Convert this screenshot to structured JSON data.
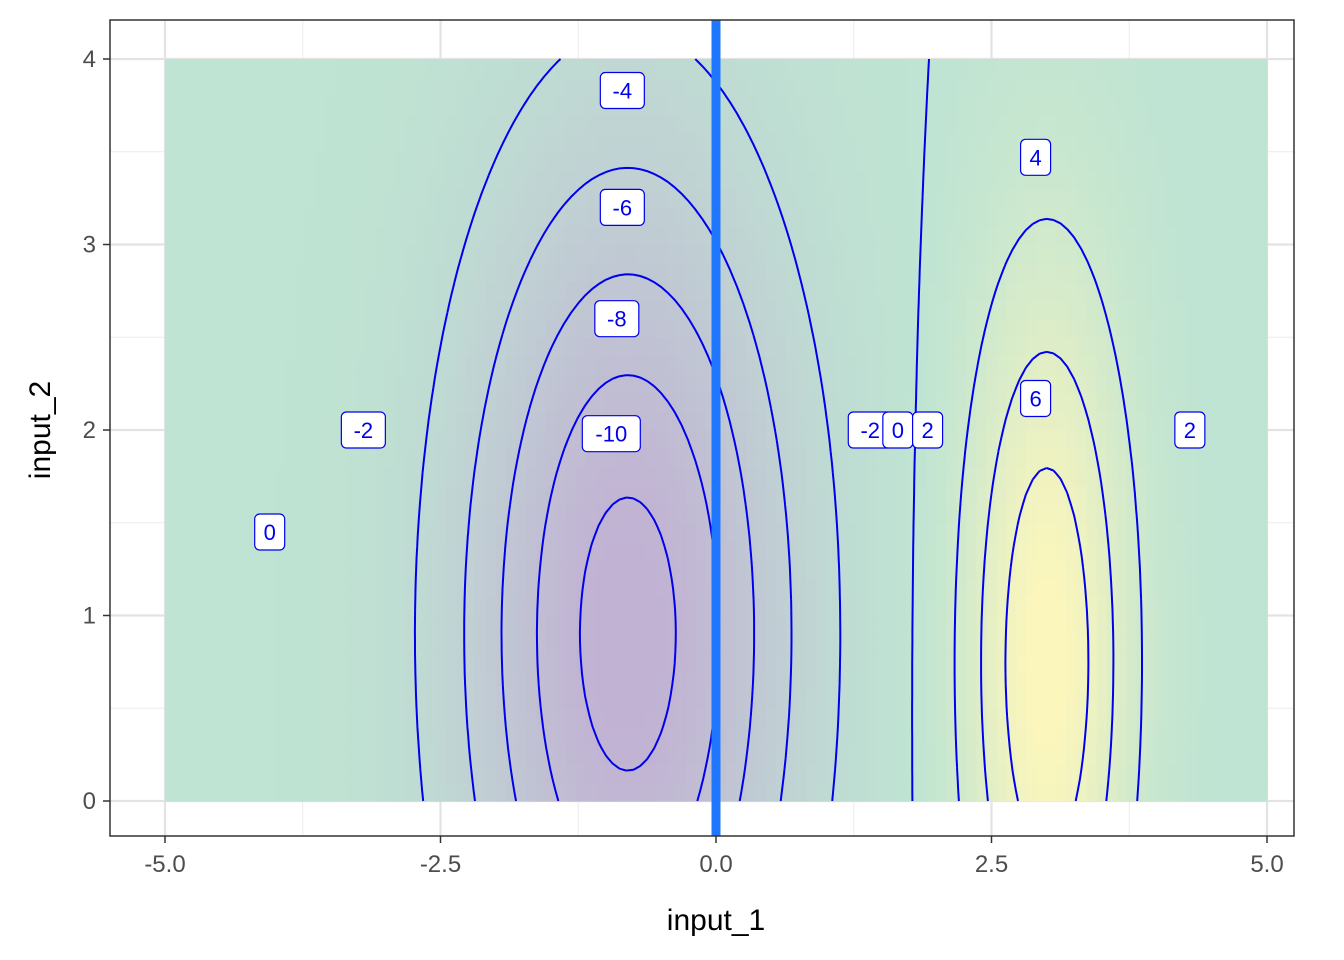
{
  "chart_data": {
    "type": "contour",
    "xlabel": "input_1",
    "ylabel": "input_2",
    "xlim": [
      -5.0,
      5.0
    ],
    "ylim": [
      0,
      4
    ],
    "x_tick_labels": [
      "-5.0",
      "-2.5",
      "0.0",
      "2.5",
      "5.0"
    ],
    "y_tick_labels": [
      "0",
      "1",
      "2",
      "3",
      "4"
    ],
    "grid": true,
    "legend": "none",
    "surface": {
      "x_range": [
        -5.0,
        5.0
      ],
      "y_range": [
        0,
        4
      ],
      "fill_low_color": "#c1b2d3",
      "fill_mid_color": "#bfe4d3",
      "fill_high_color": "#fbf6bc",
      "description_levels": [
        -10,
        -8,
        -6,
        -4,
        -2,
        0,
        2,
        4,
        6
      ]
    },
    "contour_color": "#0000ee",
    "contour_labels": [
      {
        "text": "-4",
        "x": -0.85,
        "y": 3.83
      },
      {
        "text": "-6",
        "x": -0.85,
        "y": 3.2
      },
      {
        "text": "-8",
        "x": -0.9,
        "y": 2.6
      },
      {
        "text": "-10",
        "x": -0.95,
        "y": 1.98
      },
      {
        "text": "-2",
        "x": -3.2,
        "y": 2.0
      },
      {
        "text": "0",
        "x": -4.05,
        "y": 1.45
      },
      {
        "text": "-2",
        "x": 1.4,
        "y": 2.0
      },
      {
        "text": "0",
        "x": 1.65,
        "y": 2.0
      },
      {
        "text": "2",
        "x": 1.92,
        "y": 2.0
      },
      {
        "text": "4",
        "x": 2.9,
        "y": 3.47
      },
      {
        "text": "6",
        "x": 2.9,
        "y": 2.17
      },
      {
        "text": "2",
        "x": 4.3,
        "y": 2.0
      }
    ],
    "vertical_line": {
      "x": 0.0,
      "color": "#1f77ff"
    }
  }
}
